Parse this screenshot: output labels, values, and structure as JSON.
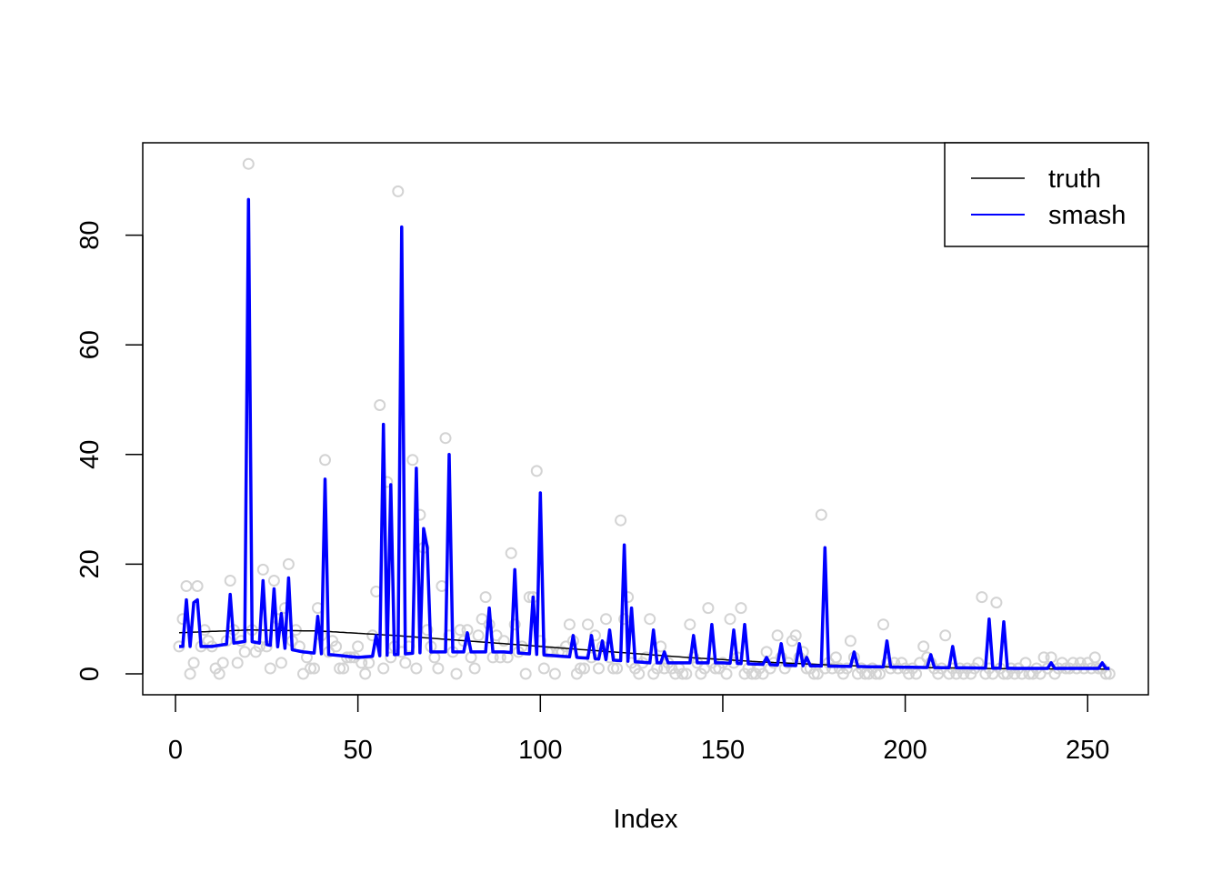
{
  "chart_data": {
    "type": "line",
    "title": "",
    "xlabel": "Index",
    "ylabel": "",
    "xlim": [
      1,
      256
    ],
    "ylim": [
      0,
      93
    ],
    "x_ticks": [
      0,
      50,
      100,
      150,
      200,
      250
    ],
    "x_tick_labels": [
      "0",
      "50",
      "100",
      "150",
      "200",
      "250"
    ],
    "y_ticks": [
      0,
      20,
      40,
      60,
      80
    ],
    "y_tick_labels": [
      "0",
      "20",
      "40",
      "60",
      "80"
    ],
    "grid": false,
    "legend": {
      "position": "top-right",
      "entries": [
        {
          "label": "truth",
          "color": "#000000"
        },
        {
          "label": "smash",
          "color": "#0000ff"
        }
      ]
    },
    "colors": {
      "truth": "#000000",
      "smash": "#0000ff",
      "points": "#d3d3d3"
    },
    "series": [
      {
        "name": "truth",
        "kind": "line",
        "x_start": 1,
        "x_end": 256,
        "keypoints": [
          [
            1,
            7.5
          ],
          [
            20,
            8.0
          ],
          [
            40,
            7.8
          ],
          [
            60,
            7.0
          ],
          [
            80,
            6.0
          ],
          [
            100,
            5.0
          ],
          [
            120,
            4.0
          ],
          [
            140,
            3.0
          ],
          [
            160,
            2.2
          ],
          [
            180,
            1.6
          ],
          [
            200,
            1.2
          ],
          [
            220,
            1.0
          ],
          [
            240,
            0.9
          ],
          [
            256,
            0.85
          ]
        ]
      },
      {
        "name": "smash",
        "kind": "line",
        "x_start": 1,
        "x_end": 256,
        "baseline": [
          [
            1,
            5
          ],
          [
            10,
            5
          ],
          [
            20,
            6
          ],
          [
            35,
            4
          ],
          [
            50,
            3
          ],
          [
            70,
            4
          ],
          [
            90,
            4
          ],
          [
            110,
            3
          ],
          [
            130,
            2
          ],
          [
            150,
            2
          ],
          [
            170,
            1.5
          ],
          [
            200,
            1.2
          ],
          [
            230,
            1
          ],
          [
            256,
            1
          ]
        ],
        "peaks": [
          [
            3,
            13.5
          ],
          [
            5,
            13
          ],
          [
            6,
            13.5
          ],
          [
            15,
            14.5
          ],
          [
            20,
            86.5
          ],
          [
            24,
            17
          ],
          [
            27,
            15.5
          ],
          [
            29,
            11
          ],
          [
            31,
            17.5
          ],
          [
            39,
            10.5
          ],
          [
            41,
            35.5
          ],
          [
            55,
            7
          ],
          [
            57,
            45.5
          ],
          [
            59,
            34.5
          ],
          [
            62,
            81.5
          ],
          [
            66,
            37.5
          ],
          [
            68,
            26.5
          ],
          [
            69,
            23
          ],
          [
            75,
            40
          ],
          [
            80,
            7.5
          ],
          [
            86,
            12
          ],
          [
            93,
            19
          ],
          [
            98,
            14
          ],
          [
            100,
            33
          ],
          [
            109,
            7
          ],
          [
            114,
            7
          ],
          [
            117,
            6
          ],
          [
            119,
            8
          ],
          [
            123,
            23.5
          ],
          [
            125,
            12
          ],
          [
            131,
            8
          ],
          [
            134,
            4
          ],
          [
            142,
            7
          ],
          [
            147,
            9
          ],
          [
            153,
            8
          ],
          [
            156,
            9
          ],
          [
            162,
            3
          ],
          [
            166,
            5.5
          ],
          [
            171,
            5.5
          ],
          [
            173,
            3
          ],
          [
            178,
            23
          ],
          [
            186,
            4
          ],
          [
            195,
            6
          ],
          [
            207,
            3.5
          ],
          [
            213,
            5
          ],
          [
            223,
            10
          ],
          [
            227,
            9.5
          ],
          [
            240,
            2
          ],
          [
            254,
            2
          ]
        ]
      },
      {
        "name": "observations",
        "kind": "points",
        "points": [
          [
            1,
            5
          ],
          [
            2,
            10
          ],
          [
            3,
            16
          ],
          [
            4,
            0
          ],
          [
            5,
            2
          ],
          [
            6,
            16
          ],
          [
            7,
            5
          ],
          [
            8,
            8
          ],
          [
            9,
            6
          ],
          [
            10,
            5
          ],
          [
            11,
            1
          ],
          [
            12,
            0
          ],
          [
            13,
            2
          ],
          [
            14,
            6
          ],
          [
            15,
            17
          ],
          [
            16,
            8
          ],
          [
            17,
            2
          ],
          [
            18,
            6
          ],
          [
            19,
            4
          ],
          [
            20,
            93
          ],
          [
            21,
            8
          ],
          [
            22,
            4
          ],
          [
            23,
            5
          ],
          [
            24,
            19
          ],
          [
            25,
            5
          ],
          [
            26,
            1
          ],
          [
            27,
            17
          ],
          [
            28,
            10
          ],
          [
            29,
            2
          ],
          [
            30,
            12
          ],
          [
            31,
            20
          ],
          [
            32,
            6
          ],
          [
            33,
            8
          ],
          [
            34,
            5
          ],
          [
            35,
            0
          ],
          [
            36,
            3
          ],
          [
            37,
            1
          ],
          [
            38,
            1
          ],
          [
            39,
            12
          ],
          [
            40,
            7
          ],
          [
            41,
            39
          ],
          [
            42,
            4
          ],
          [
            43,
            6
          ],
          [
            44,
            5
          ],
          [
            45,
            1
          ],
          [
            46,
            1
          ],
          [
            47,
            3
          ],
          [
            48,
            3
          ],
          [
            49,
            3
          ],
          [
            50,
            5
          ],
          [
            51,
            2
          ],
          [
            52,
            0
          ],
          [
            53,
            2
          ],
          [
            54,
            7
          ],
          [
            55,
            15
          ],
          [
            56,
            49
          ],
          [
            57,
            1
          ],
          [
            58,
            35
          ],
          [
            59,
            3
          ],
          [
            60,
            5
          ],
          [
            61,
            88
          ],
          [
            62,
            4
          ],
          [
            63,
            2
          ],
          [
            64,
            5
          ],
          [
            65,
            39
          ],
          [
            66,
            1
          ],
          [
            67,
            29
          ],
          [
            68,
            23
          ],
          [
            69,
            8
          ],
          [
            70,
            5
          ],
          [
            71,
            3
          ],
          [
            72,
            1
          ],
          [
            73,
            16
          ],
          [
            74,
            43
          ],
          [
            75,
            7
          ],
          [
            76,
            4
          ],
          [
            77,
            0
          ],
          [
            78,
            8
          ],
          [
            79,
            6
          ],
          [
            80,
            8
          ],
          [
            81,
            3
          ],
          [
            82,
            1
          ],
          [
            83,
            7
          ],
          [
            84,
            10
          ],
          [
            85,
            14
          ],
          [
            86,
            9
          ],
          [
            87,
            3
          ],
          [
            88,
            7
          ],
          [
            89,
            3
          ],
          [
            90,
            6
          ],
          [
            91,
            3
          ],
          [
            92,
            22
          ],
          [
            93,
            9
          ],
          [
            94,
            4
          ],
          [
            95,
            5
          ],
          [
            96,
            0
          ],
          [
            97,
            14
          ],
          [
            98,
            14
          ],
          [
            99,
            37
          ],
          [
            100,
            6
          ],
          [
            101,
            1
          ],
          [
            102,
            4
          ],
          [
            103,
            4
          ],
          [
            104,
            0
          ],
          [
            105,
            4
          ],
          [
            106,
            4
          ],
          [
            107,
            5
          ],
          [
            108,
            9
          ],
          [
            109,
            6
          ],
          [
            110,
            0
          ],
          [
            111,
            1
          ],
          [
            112,
            1
          ],
          [
            113,
            9
          ],
          [
            114,
            3
          ],
          [
            115,
            7
          ],
          [
            116,
            1
          ],
          [
            117,
            5
          ],
          [
            118,
            10
          ],
          [
            119,
            3
          ],
          [
            120,
            1
          ],
          [
            121,
            1
          ],
          [
            122,
            28
          ],
          [
            123,
            10
          ],
          [
            124,
            14
          ],
          [
            125,
            2
          ],
          [
            126,
            1
          ],
          [
            127,
            0
          ],
          [
            128,
            2
          ],
          [
            129,
            3
          ],
          [
            130,
            10
          ],
          [
            131,
            0
          ],
          [
            132,
            1
          ],
          [
            133,
            5
          ],
          [
            134,
            1
          ],
          [
            135,
            2
          ],
          [
            136,
            1
          ],
          [
            137,
            0
          ],
          [
            138,
            1
          ],
          [
            139,
            0
          ],
          [
            140,
            0
          ],
          [
            141,
            9
          ],
          [
            142,
            3
          ],
          [
            143,
            2
          ],
          [
            144,
            0
          ],
          [
            145,
            1
          ],
          [
            146,
            12
          ],
          [
            147,
            2
          ],
          [
            148,
            1
          ],
          [
            149,
            1
          ],
          [
            150,
            2
          ],
          [
            151,
            0
          ],
          [
            152,
            10
          ],
          [
            153,
            2
          ],
          [
            154,
            3
          ],
          [
            155,
            12
          ],
          [
            156,
            0
          ],
          [
            157,
            1
          ],
          [
            158,
            0
          ],
          [
            159,
            0
          ],
          [
            160,
            1
          ],
          [
            161,
            0
          ],
          [
            162,
            4
          ],
          [
            163,
            1
          ],
          [
            164,
            2
          ],
          [
            165,
            7
          ],
          [
            166,
            3
          ],
          [
            167,
            1
          ],
          [
            168,
            2
          ],
          [
            169,
            6
          ],
          [
            170,
            7
          ],
          [
            171,
            3
          ],
          [
            172,
            4
          ],
          [
            173,
            1
          ],
          [
            174,
            1
          ],
          [
            175,
            0
          ],
          [
            176,
            0
          ],
          [
            177,
            29
          ],
          [
            178,
            1
          ],
          [
            179,
            2
          ],
          [
            180,
            1
          ],
          [
            181,
            3
          ],
          [
            182,
            1
          ],
          [
            183,
            0
          ],
          [
            184,
            1
          ],
          [
            185,
            6
          ],
          [
            186,
            3
          ],
          [
            187,
            0
          ],
          [
            188,
            1
          ],
          [
            189,
            0
          ],
          [
            190,
            0
          ],
          [
            191,
            1
          ],
          [
            192,
            0
          ],
          [
            193,
            0
          ],
          [
            194,
            9
          ],
          [
            195,
            2
          ],
          [
            196,
            1
          ],
          [
            197,
            2
          ],
          [
            198,
            1
          ],
          [
            199,
            2
          ],
          [
            200,
            1
          ],
          [
            201,
            0
          ],
          [
            202,
            1
          ],
          [
            203,
            0
          ],
          [
            204,
            2
          ],
          [
            205,
            5
          ],
          [
            206,
            3
          ],
          [
            207,
            2
          ],
          [
            208,
            1
          ],
          [
            209,
            0
          ],
          [
            210,
            1
          ],
          [
            211,
            7
          ],
          [
            212,
            0
          ],
          [
            213,
            1
          ],
          [
            214,
            0
          ],
          [
            215,
            1
          ],
          [
            216,
            0
          ],
          [
            217,
            1
          ],
          [
            218,
            0
          ],
          [
            219,
            1
          ],
          [
            220,
            2
          ],
          [
            221,
            14
          ],
          [
            222,
            0
          ],
          [
            223,
            1
          ],
          [
            224,
            0
          ],
          [
            225,
            13
          ],
          [
            226,
            1
          ],
          [
            227,
            0
          ],
          [
            228,
            0
          ],
          [
            229,
            1
          ],
          [
            230,
            0
          ],
          [
            231,
            1
          ],
          [
            232,
            0
          ],
          [
            233,
            2
          ],
          [
            234,
            0
          ],
          [
            235,
            0
          ],
          [
            236,
            1
          ],
          [
            237,
            0
          ],
          [
            238,
            3
          ],
          [
            239,
            1
          ],
          [
            240,
            3
          ],
          [
            241,
            0
          ],
          [
            242,
            1
          ],
          [
            243,
            2
          ],
          [
            244,
            1
          ],
          [
            245,
            1
          ],
          [
            246,
            2
          ],
          [
            247,
            1
          ],
          [
            248,
            2
          ],
          [
            249,
            1
          ],
          [
            250,
            2
          ],
          [
            251,
            1
          ],
          [
            252,
            3
          ],
          [
            253,
            1
          ],
          [
            254,
            1
          ],
          [
            255,
            0
          ],
          [
            256,
            0
          ]
        ]
      }
    ]
  }
}
